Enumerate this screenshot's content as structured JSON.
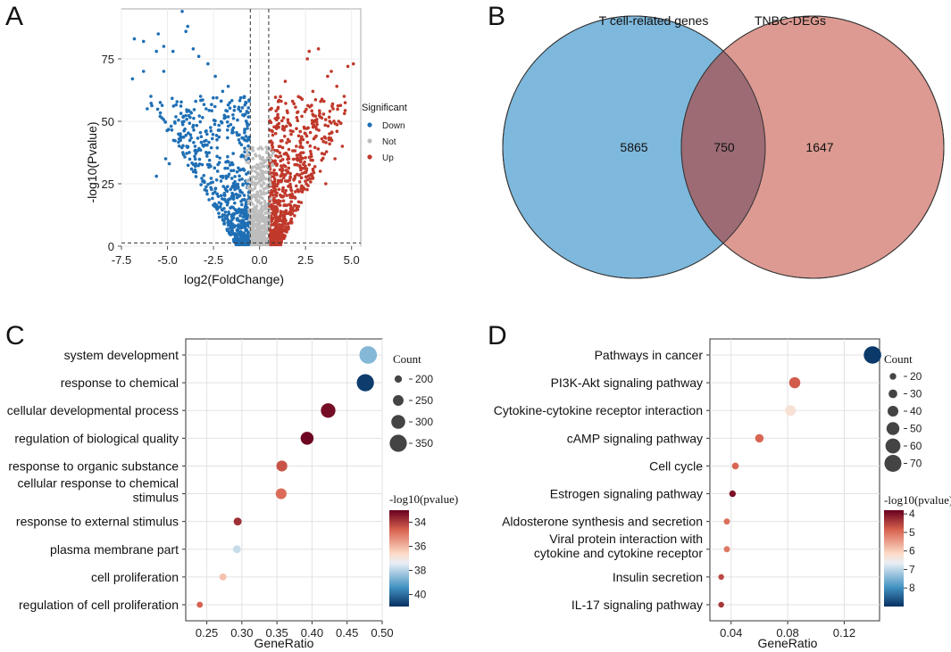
{
  "panels": {
    "A": "A",
    "B": "B",
    "C": "C",
    "D": "D"
  },
  "colors": {
    "down": "#1f6fb5",
    "up": "#c0392b",
    "not": "#bdbdbd",
    "venn_left": "#7eb8dc",
    "venn_right": "#dd9a92",
    "venn_overlap": "#9c6b74"
  },
  "chart_data": [
    {
      "id": "volcano",
      "type": "scatter",
      "title": "",
      "xlabel": "log2(FoldChange)",
      "ylabel": "-log10(Pvalue)",
      "xlim": [
        -7.5,
        5.5
      ],
      "ylim": [
        0,
        95
      ],
      "xticks": [
        "-7.5",
        "-5.0",
        "-2.5",
        "0.0",
        "2.5",
        "5.0"
      ],
      "yticks": [
        "0",
        "25",
        "50",
        "75"
      ],
      "thresholds": {
        "x": [
          -0.5,
          0.5
        ],
        "y": 1.3
      },
      "legend": {
        "title": "Significant",
        "position": "right",
        "entries": [
          "Down",
          "Not",
          "Up"
        ]
      },
      "series": [
        {
          "name": "Down",
          "points": [
            [
              -4.2,
              94
            ],
            [
              -3.9,
              88
            ],
            [
              -4.0,
              86
            ],
            [
              -6.8,
              83
            ],
            [
              -6.3,
              82
            ],
            [
              -5.5,
              85
            ],
            [
              -5.6,
              78
            ],
            [
              -5.2,
              80
            ],
            [
              -3.6,
              79
            ],
            [
              -4.7,
              78
            ],
            [
              -6.9,
              67
            ],
            [
              -6.3,
              70
            ],
            [
              -5.9,
              60
            ],
            [
              -5.2,
              70
            ],
            [
              -3.3,
              76
            ],
            [
              -2.8,
              73
            ],
            [
              -6.1,
              55
            ],
            [
              -5.4,
              52
            ],
            [
              -4.8,
              48
            ],
            [
              -4.3,
              45
            ],
            [
              -5.1,
              35
            ],
            [
              -5.6,
              28
            ],
            [
              -4.9,
              33
            ],
            [
              -3.2,
              60
            ],
            [
              -2.9,
              55
            ],
            [
              -2.4,
              68
            ],
            [
              -2.0,
              62
            ],
            [
              -1.7,
              64
            ],
            [
              -3.5,
              40
            ],
            [
              -3.0,
              42
            ]
          ]
        },
        {
          "name": "Not",
          "points": [
            [
              0,
              1
            ],
            [
              0.2,
              3
            ],
            [
              -0.2,
              5
            ],
            [
              0.3,
              8
            ],
            [
              -0.3,
              10
            ],
            [
              0.1,
              15
            ],
            [
              -0.1,
              20
            ],
            [
              0.25,
              25
            ],
            [
              -0.25,
              30
            ]
          ]
        },
        {
          "name": "Up",
          "points": [
            [
              3.2,
              79
            ],
            [
              2.7,
              78
            ],
            [
              2.6,
              75
            ],
            [
              5.1,
              73
            ],
            [
              4.8,
              72
            ],
            [
              3.9,
              70
            ],
            [
              3.7,
              68
            ],
            [
              4.2,
              64
            ],
            [
              4.6,
              60
            ],
            [
              4.0,
              55
            ],
            [
              3.5,
              58
            ],
            [
              4.3,
              50
            ],
            [
              3.8,
              45
            ],
            [
              4.5,
              40
            ],
            [
              4.1,
              35
            ],
            [
              3.3,
              30
            ],
            [
              3.6,
              25
            ],
            [
              2.9,
              62
            ],
            [
              2.3,
              52
            ],
            [
              1.8,
              58
            ],
            [
              1.4,
              66
            ],
            [
              2.5,
              45
            ],
            [
              2.0,
              40
            ],
            [
              1.6,
              35
            ]
          ]
        }
      ]
    },
    {
      "id": "venn",
      "type": "venn",
      "sets": [
        {
          "label": "T cell-related genes",
          "only": "5865"
        },
        {
          "label": "TNBC-DEGs",
          "only": "1647"
        }
      ],
      "intersection": "750"
    },
    {
      "id": "go",
      "type": "scatter",
      "xlabel": "GeneRatio",
      "xlim": [
        0.22,
        0.5
      ],
      "xticks": [
        "0.25",
        "0.30",
        "0.35",
        "0.40",
        "0.45",
        "0.50"
      ],
      "categories": [
        "system development",
        "response to chemical",
        "cellular developmental process",
        "regulation of biological quality",
        "response to organic substance",
        "cellular response to chemical stimulus",
        "response to external stimulus",
        "plasma membrane part",
        "cell proliferation",
        "regulation of cell proliferation"
      ],
      "gene_ratio": [
        0.48,
        0.476,
        0.423,
        0.393,
        0.357,
        0.356,
        0.294,
        0.293,
        0.273,
        0.24
      ],
      "count": [
        355,
        350,
        310,
        285,
        255,
        253,
        210,
        208,
        195,
        180
      ],
      "neglog10p": [
        38.6,
        40.8,
        33.2,
        33.1,
        34.4,
        34.8,
        33.8,
        37.8,
        36.2,
        34.6
      ],
      "size_legend": {
        "title": "Count",
        "values": [
          "200",
          "250",
          "300",
          "350"
        ]
      },
      "color_legend": {
        "title": "-log10(pvalue)",
        "ticks": [
          "34",
          "36",
          "38",
          "40"
        ],
        "range": [
          33,
          41
        ]
      }
    },
    {
      "id": "kegg",
      "type": "scatter",
      "xlabel": "GeneRatio",
      "xlim": [
        0.025,
        0.145
      ],
      "xticks": [
        "0.04",
        "0.08",
        "0.12"
      ],
      "categories": [
        "Pathways in cancer",
        "PI3K-Akt signaling pathway",
        "Cytokine-cytokine receptor interaction",
        "cAMP signaling pathway",
        "Cell cycle",
        "Estrogen signaling pathway",
        "Aldosterone synthesis and secretion",
        "Viral protein interaction with cytokine and cytokine receptor",
        "Insulin secretion",
        "IL-17 signaling pathway"
      ],
      "gene_ratio": [
        0.14,
        0.085,
        0.082,
        0.06,
        0.043,
        0.041,
        0.037,
        0.037,
        0.033,
        0.033
      ],
      "count": [
        72,
        42,
        40,
        29,
        21,
        20,
        18,
        18,
        16,
        16
      ],
      "neglog10p": [
        8.9,
        4.8,
        6.3,
        4.9,
        4.9,
        4.0,
        5.0,
        5.1,
        4.6,
        4.4
      ],
      "size_legend": {
        "title": "Count",
        "values": [
          "20",
          "30",
          "40",
          "50",
          "60",
          "70"
        ]
      },
      "color_legend": {
        "title": "-log10(pvalue)",
        "ticks": [
          "4",
          "5",
          "6",
          "7",
          "8"
        ],
        "range": [
          3.8,
          9
        ]
      }
    }
  ]
}
